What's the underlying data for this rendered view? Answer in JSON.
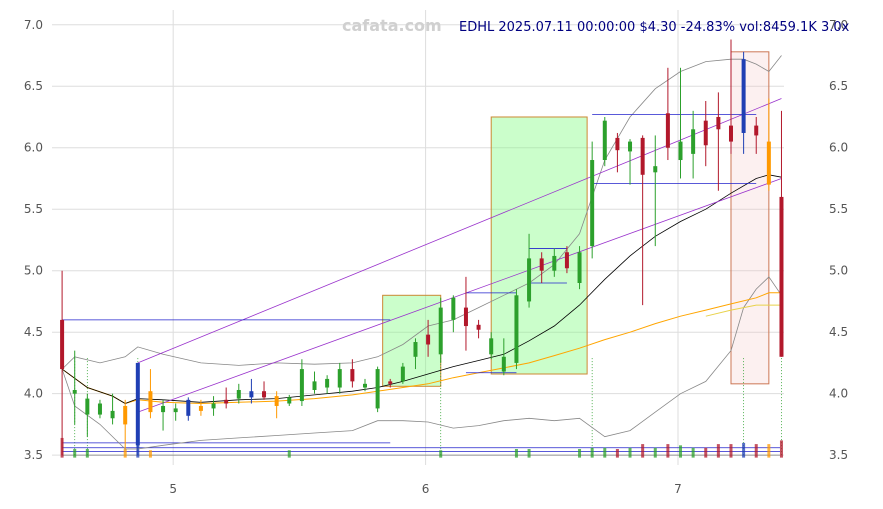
{
  "watermark": "cafata.com",
  "title": "EDHL 2025.07.11 00:00:00 $4.30 -24.83% vol:8459.1K 3.0x",
  "colors": {
    "up": "#2ca02c",
    "down": "#b2182b",
    "special_up": "#1f3fb4",
    "special_down": "#ff9900",
    "ma_short": "#000000",
    "ma_long": "#ffa500",
    "bollinger": "#888888",
    "trend": "#9932cc",
    "level": "#2222cc",
    "green_box": "#7cfc7c",
    "red_box": "#f4c2c2",
    "title": "#000080",
    "watermark": "#cfcfcf",
    "tick": "#555555"
  },
  "chart_data": {
    "type": "candlestick",
    "title": "EDHL 2025.07.11 00:00:00 $4.30 -24.83% vol:8459.1K 3.0x",
    "x_ticks": [
      "5",
      "6",
      "7"
    ],
    "y_ticks": [
      "3.5",
      "4.0",
      "4.5",
      "5.0",
      "5.5",
      "6.0",
      "6.5",
      "7.0"
    ],
    "xlim": [
      4.52,
      7.42
    ],
    "ylim": [
      3.42,
      7.12
    ],
    "grid": true,
    "candles": [
      {
        "x": 4.56,
        "o": 4.6,
        "h": 5.0,
        "l": 3.5,
        "c": 4.2,
        "color": "down"
      },
      {
        "x": 4.61,
        "o": 4.0,
        "h": 4.35,
        "l": 3.75,
        "c": 4.03,
        "color": "up"
      },
      {
        "x": 4.66,
        "o": 3.83,
        "h": 4.0,
        "l": 3.65,
        "c": 3.96,
        "color": "up"
      },
      {
        "x": 4.71,
        "o": 3.83,
        "h": 3.95,
        "l": 3.8,
        "c": 3.92,
        "color": "up"
      },
      {
        "x": 4.76,
        "o": 3.8,
        "h": 4.0,
        "l": 3.75,
        "c": 3.86,
        "color": "up"
      },
      {
        "x": 4.81,
        "o": 3.9,
        "h": 3.95,
        "l": 3.55,
        "c": 3.75,
        "color": "special_down"
      },
      {
        "x": 4.86,
        "o": 3.58,
        "h": 4.25,
        "l": 3.5,
        "c": 4.25,
        "color": "special_up"
      },
      {
        "x": 4.91,
        "o": 4.02,
        "h": 4.2,
        "l": 3.8,
        "c": 3.85,
        "color": "special_down"
      },
      {
        "x": 4.96,
        "o": 3.85,
        "h": 3.95,
        "l": 3.7,
        "c": 3.9,
        "color": "up"
      },
      {
        "x": 5.01,
        "o": 3.85,
        "h": 3.92,
        "l": 3.78,
        "c": 3.88,
        "color": "up"
      },
      {
        "x": 5.06,
        "o": 3.82,
        "h": 3.97,
        "l": 3.78,
        "c": 3.95,
        "color": "special_up"
      },
      {
        "x": 5.11,
        "o": 3.9,
        "h": 3.95,
        "l": 3.82,
        "c": 3.86,
        "color": "special_down"
      },
      {
        "x": 5.16,
        "o": 3.88,
        "h": 3.98,
        "l": 3.82,
        "c": 3.92,
        "color": "up"
      },
      {
        "x": 5.21,
        "o": 3.95,
        "h": 4.05,
        "l": 3.88,
        "c": 3.92,
        "color": "down"
      },
      {
        "x": 5.26,
        "o": 3.96,
        "h": 4.08,
        "l": 3.92,
        "c": 4.03,
        "color": "up"
      },
      {
        "x": 5.31,
        "o": 4.02,
        "h": 4.12,
        "l": 3.92,
        "c": 3.97,
        "color": "special_up"
      },
      {
        "x": 5.36,
        "o": 4.02,
        "h": 4.1,
        "l": 3.95,
        "c": 3.97,
        "color": "down"
      },
      {
        "x": 5.41,
        "o": 3.98,
        "h": 4.02,
        "l": 3.8,
        "c": 3.9,
        "color": "special_down"
      },
      {
        "x": 5.46,
        "o": 3.92,
        "h": 3.99,
        "l": 3.9,
        "c": 3.97,
        "color": "up"
      },
      {
        "x": 5.51,
        "o": 3.94,
        "h": 4.28,
        "l": 3.9,
        "c": 4.2,
        "color": "up"
      },
      {
        "x": 5.56,
        "o": 4.03,
        "h": 4.18,
        "l": 4.0,
        "c": 4.1,
        "color": "up"
      },
      {
        "x": 5.61,
        "o": 4.05,
        "h": 4.15,
        "l": 4.0,
        "c": 4.12,
        "color": "up"
      },
      {
        "x": 5.66,
        "o": 4.05,
        "h": 4.25,
        "l": 4.0,
        "c": 4.2,
        "color": "up"
      },
      {
        "x": 5.71,
        "o": 4.2,
        "h": 4.28,
        "l": 4.05,
        "c": 4.1,
        "color": "down"
      },
      {
        "x": 5.76,
        "o": 4.05,
        "h": 4.12,
        "l": 4.02,
        "c": 4.08,
        "color": "up"
      },
      {
        "x": 5.81,
        "o": 3.88,
        "h": 4.22,
        "l": 3.85,
        "c": 4.2,
        "color": "up"
      },
      {
        "x": 5.86,
        "o": 4.1,
        "h": 4.12,
        "l": 4.05,
        "c": 4.08,
        "color": "down"
      },
      {
        "x": 5.91,
        "o": 4.1,
        "h": 4.25,
        "l": 4.08,
        "c": 4.22,
        "color": "up"
      },
      {
        "x": 5.96,
        "o": 4.3,
        "h": 4.45,
        "l": 4.2,
        "c": 4.42,
        "color": "up"
      },
      {
        "x": 6.01,
        "o": 4.48,
        "h": 4.6,
        "l": 4.3,
        "c": 4.4,
        "color": "down"
      },
      {
        "x": 6.06,
        "o": 4.32,
        "h": 4.78,
        "l": 4.25,
        "c": 4.7,
        "color": "up"
      },
      {
        "x": 6.11,
        "o": 4.6,
        "h": 4.8,
        "l": 4.5,
        "c": 4.78,
        "color": "up"
      },
      {
        "x": 6.16,
        "o": 4.7,
        "h": 4.95,
        "l": 4.35,
        "c": 4.55,
        "color": "down"
      },
      {
        "x": 6.21,
        "o": 4.56,
        "h": 4.6,
        "l": 4.45,
        "c": 4.52,
        "color": "down"
      },
      {
        "x": 6.26,
        "o": 4.32,
        "h": 4.5,
        "l": 4.28,
        "c": 4.45,
        "color": "up"
      },
      {
        "x": 6.31,
        "o": 4.18,
        "h": 4.45,
        "l": 4.15,
        "c": 4.3,
        "color": "up"
      },
      {
        "x": 6.36,
        "o": 4.25,
        "h": 4.85,
        "l": 4.2,
        "c": 4.8,
        "color": "up"
      },
      {
        "x": 6.41,
        "o": 4.75,
        "h": 5.3,
        "l": 4.7,
        "c": 5.1,
        "color": "up"
      },
      {
        "x": 6.46,
        "o": 5.1,
        "h": 5.15,
        "l": 4.9,
        "c": 5.0,
        "color": "down"
      },
      {
        "x": 6.51,
        "o": 5.0,
        "h": 5.18,
        "l": 4.95,
        "c": 5.12,
        "color": "up"
      },
      {
        "x": 6.56,
        "o": 5.15,
        "h": 5.2,
        "l": 4.98,
        "c": 5.02,
        "color": "down"
      },
      {
        "x": 6.61,
        "o": 4.9,
        "h": 5.2,
        "l": 4.85,
        "c": 5.15,
        "color": "up"
      },
      {
        "x": 6.66,
        "o": 5.2,
        "h": 6.05,
        "l": 5.1,
        "c": 5.9,
        "color": "up"
      },
      {
        "x": 6.71,
        "o": 5.9,
        "h": 6.25,
        "l": 5.85,
        "c": 6.22,
        "color": "up"
      },
      {
        "x": 6.76,
        "o": 6.08,
        "h": 6.12,
        "l": 5.8,
        "c": 5.98,
        "color": "down"
      },
      {
        "x": 6.81,
        "o": 5.97,
        "h": 6.07,
        "l": 5.7,
        "c": 6.05,
        "color": "up"
      },
      {
        "x": 6.86,
        "o": 6.08,
        "h": 6.1,
        "l": 4.72,
        "c": 5.78,
        "color": "down"
      },
      {
        "x": 6.91,
        "o": 5.8,
        "h": 6.1,
        "l": 5.2,
        "c": 5.85,
        "color": "up"
      },
      {
        "x": 6.96,
        "o": 6.28,
        "h": 6.65,
        "l": 5.9,
        "c": 6.0,
        "color": "down"
      },
      {
        "x": 7.01,
        "o": 5.9,
        "h": 6.65,
        "l": 5.75,
        "c": 6.05,
        "color": "up"
      },
      {
        "x": 7.06,
        "o": 5.95,
        "h": 6.3,
        "l": 5.75,
        "c": 6.15,
        "color": "up"
      },
      {
        "x": 7.11,
        "o": 6.22,
        "h": 6.38,
        "l": 5.85,
        "c": 6.02,
        "color": "down"
      },
      {
        "x": 7.16,
        "o": 6.25,
        "h": 6.45,
        "l": 5.65,
        "c": 6.15,
        "color": "down"
      },
      {
        "x": 7.21,
        "o": 6.18,
        "h": 6.88,
        "l": 5.95,
        "c": 6.05,
        "color": "down"
      },
      {
        "x": 7.26,
        "o": 6.12,
        "h": 6.78,
        "l": 5.95,
        "c": 6.72,
        "color": "special_up"
      },
      {
        "x": 7.31,
        "o": 6.18,
        "h": 6.25,
        "l": 5.95,
        "c": 6.1,
        "color": "down"
      },
      {
        "x": 7.36,
        "o": 6.05,
        "h": 6.4,
        "l": 5.65,
        "c": 5.7,
        "color": "special_down"
      },
      {
        "x": 7.41,
        "o": 5.6,
        "h": 6.3,
        "l": 4.3,
        "c": 4.3,
        "color": "down"
      }
    ],
    "ma_short": [
      [
        4.56,
        4.2
      ],
      [
        4.66,
        4.05
      ],
      [
        4.76,
        3.98
      ],
      [
        4.81,
        3.92
      ],
      [
        4.86,
        3.96
      ],
      [
        4.96,
        3.95
      ],
      [
        5.11,
        3.93
      ],
      [
        5.26,
        3.95
      ],
      [
        5.41,
        3.96
      ],
      [
        5.56,
        3.99
      ],
      [
        5.71,
        4.02
      ],
      [
        5.81,
        4.05
      ],
      [
        5.91,
        4.1
      ],
      [
        6.01,
        4.16
      ],
      [
        6.11,
        4.22
      ],
      [
        6.21,
        4.27
      ],
      [
        6.31,
        4.32
      ],
      [
        6.41,
        4.43
      ],
      [
        6.51,
        4.55
      ],
      [
        6.61,
        4.72
      ],
      [
        6.71,
        4.93
      ],
      [
        6.81,
        5.12
      ],
      [
        6.91,
        5.28
      ],
      [
        7.01,
        5.4
      ],
      [
        7.11,
        5.5
      ],
      [
        7.21,
        5.63
      ],
      [
        7.31,
        5.75
      ],
      [
        7.36,
        5.78
      ],
      [
        7.41,
        5.76
      ]
    ],
    "ma_long": [
      [
        4.56,
        4.2
      ],
      [
        4.66,
        4.05
      ],
      [
        4.76,
        3.98
      ],
      [
        4.81,
        3.92
      ],
      [
        4.86,
        3.95
      ],
      [
        4.96,
        3.93
      ],
      [
        5.11,
        3.92
      ],
      [
        5.26,
        3.93
      ],
      [
        5.41,
        3.94
      ],
      [
        5.56,
        3.96
      ],
      [
        5.71,
        3.99
      ],
      [
        5.81,
        4.02
      ],
      [
        5.91,
        4.05
      ],
      [
        6.01,
        4.08
      ],
      [
        6.11,
        4.13
      ],
      [
        6.21,
        4.17
      ],
      [
        6.31,
        4.21
      ],
      [
        6.41,
        4.25
      ],
      [
        6.51,
        4.31
      ],
      [
        6.61,
        4.37
      ],
      [
        6.71,
        4.44
      ],
      [
        6.81,
        4.5
      ],
      [
        6.91,
        4.57
      ],
      [
        7.01,
        4.63
      ],
      [
        7.11,
        4.68
      ],
      [
        7.21,
        4.73
      ],
      [
        7.31,
        4.78
      ],
      [
        7.36,
        4.82
      ],
      [
        7.41,
        4.82
      ]
    ],
    "ma_long_2": [
      [
        7.11,
        4.63
      ],
      [
        7.21,
        4.68
      ],
      [
        7.31,
        4.72
      ],
      [
        7.41,
        4.72
      ]
    ],
    "bollinger_upper": [
      [
        4.56,
        4.2
      ],
      [
        4.61,
        4.3
      ],
      [
        4.71,
        4.25
      ],
      [
        4.81,
        4.3
      ],
      [
        4.86,
        4.38
      ],
      [
        4.96,
        4.32
      ],
      [
        5.11,
        4.25
      ],
      [
        5.26,
        4.23
      ],
      [
        5.41,
        4.25
      ],
      [
        5.56,
        4.24
      ],
      [
        5.71,
        4.25
      ],
      [
        5.81,
        4.3
      ],
      [
        5.91,
        4.4
      ],
      [
        6.01,
        4.55
      ],
      [
        6.11,
        4.6
      ],
      [
        6.21,
        4.7
      ],
      [
        6.31,
        4.8
      ],
      [
        6.41,
        4.9
      ],
      [
        6.51,
        5.05
      ],
      [
        6.61,
        5.3
      ],
      [
        6.71,
        5.9
      ],
      [
        6.81,
        6.25
      ],
      [
        6.91,
        6.48
      ],
      [
        7.01,
        6.62
      ],
      [
        7.11,
        6.7
      ],
      [
        7.21,
        6.72
      ],
      [
        7.26,
        6.72
      ],
      [
        7.31,
        6.68
      ],
      [
        7.36,
        6.62
      ],
      [
        7.41,
        6.75
      ]
    ],
    "bollinger_lower": [
      [
        4.56,
        4.2
      ],
      [
        4.61,
        3.9
      ],
      [
        4.71,
        3.75
      ],
      [
        4.81,
        3.55
      ],
      [
        4.86,
        3.55
      ],
      [
        4.96,
        3.58
      ],
      [
        5.11,
        3.62
      ],
      [
        5.26,
        3.64
      ],
      [
        5.41,
        3.66
      ],
      [
        5.56,
        3.68
      ],
      [
        5.71,
        3.7
      ],
      [
        5.81,
        3.78
      ],
      [
        5.91,
        3.78
      ],
      [
        6.01,
        3.77
      ],
      [
        6.11,
        3.72
      ],
      [
        6.21,
        3.74
      ],
      [
        6.31,
        3.78
      ],
      [
        6.41,
        3.8
      ],
      [
        6.51,
        3.78
      ],
      [
        6.61,
        3.8
      ],
      [
        6.71,
        3.65
      ],
      [
        6.81,
        3.7
      ],
      [
        6.91,
        3.85
      ],
      [
        7.01,
        4.0
      ],
      [
        7.11,
        4.1
      ],
      [
        7.21,
        4.35
      ],
      [
        7.26,
        4.7
      ],
      [
        7.31,
        4.85
      ],
      [
        7.36,
        4.95
      ],
      [
        7.41,
        4.8
      ]
    ],
    "trend_lines": [
      {
        "x1": 4.86,
        "y1": 4.25,
        "x2": 7.41,
        "y2": 6.4
      },
      {
        "x1": 4.86,
        "y1": 3.85,
        "x2": 7.41,
        "y2": 5.75
      }
    ],
    "level_lines": [
      {
        "x1": 4.56,
        "x2": 5.86,
        "y": 4.6
      },
      {
        "x1": 6.66,
        "x2": 7.31,
        "y": 6.27
      },
      {
        "x1": 6.66,
        "x2": 7.31,
        "y": 5.71
      },
      {
        "x1": 6.16,
        "x2": 6.36,
        "y": 4.82
      },
      {
        "x1": 6.16,
        "x2": 6.36,
        "y": 4.17
      },
      {
        "x1": 6.41,
        "x2": 6.56,
        "y": 5.18
      },
      {
        "x1": 6.41,
        "x2": 6.56,
        "y": 4.9
      }
    ],
    "zones": [
      {
        "x1": 5.83,
        "x2": 6.06,
        "y1": 4.06,
        "y2": 4.8,
        "kind": "green"
      },
      {
        "x1": 6.26,
        "x2": 6.64,
        "y1": 4.16,
        "y2": 6.25,
        "kind": "green"
      },
      {
        "x1": 7.21,
        "x2": 7.36,
        "y1": 4.08,
        "y2": 6.78,
        "kind": "red"
      }
    ],
    "volume_markers": [
      {
        "x": 4.56,
        "color": "down",
        "h": 0.14
      },
      {
        "x": 4.61,
        "color": "up",
        "h": 0.05
      },
      {
        "x": 4.66,
        "color": "up",
        "h": 0.05
      },
      {
        "x": 4.81,
        "color": "special_down",
        "h": 0.05
      },
      {
        "x": 4.86,
        "color": "special_up",
        "h": 0.12
      },
      {
        "x": 4.91,
        "color": "special_down",
        "h": 0.04
      },
      {
        "x": 5.46,
        "color": "up",
        "h": 0.04
      },
      {
        "x": 6.06,
        "color": "up",
        "h": 0.04
      },
      {
        "x": 6.36,
        "color": "up",
        "h": 0.05
      },
      {
        "x": 6.41,
        "color": "up",
        "h": 0.05
      },
      {
        "x": 6.61,
        "color": "up",
        "h": 0.05
      },
      {
        "x": 6.66,
        "color": "up",
        "h": 0.06
      },
      {
        "x": 6.71,
        "color": "up",
        "h": 0.06
      },
      {
        "x": 6.76,
        "color": "down",
        "h": 0.05
      },
      {
        "x": 6.81,
        "color": "up",
        "h": 0.06
      },
      {
        "x": 6.86,
        "color": "down",
        "h": 0.09
      },
      {
        "x": 6.91,
        "color": "up",
        "h": 0.06
      },
      {
        "x": 6.96,
        "color": "down",
        "h": 0.09
      },
      {
        "x": 7.01,
        "color": "up",
        "h": 0.08
      },
      {
        "x": 7.06,
        "color": "up",
        "h": 0.06
      },
      {
        "x": 7.11,
        "color": "down",
        "h": 0.06
      },
      {
        "x": 7.16,
        "color": "down",
        "h": 0.09
      },
      {
        "x": 7.21,
        "color": "down",
        "h": 0.09
      },
      {
        "x": 7.26,
        "color": "special_up",
        "h": 0.1
      },
      {
        "x": 7.31,
        "color": "down",
        "h": 0.09
      },
      {
        "x": 7.36,
        "color": "special_down",
        "h": 0.09
      },
      {
        "x": 7.41,
        "color": "down",
        "h": 0.12
      }
    ]
  }
}
